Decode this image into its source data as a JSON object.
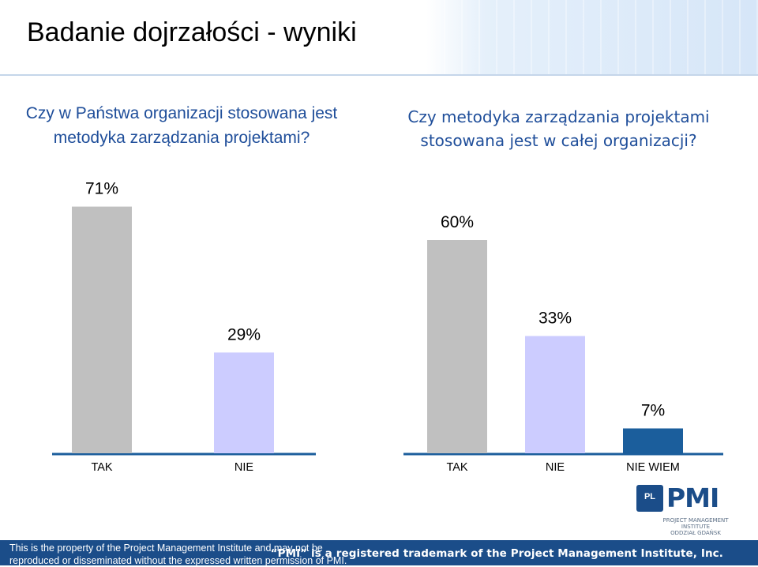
{
  "slide": {
    "title": "Badanie dojrzałości - wyniki"
  },
  "chart_data": [
    {
      "type": "bar",
      "title": "Czy w Państwa organizacji stosowana jest metodyka zarządzania projektami?",
      "categories": [
        "TAK",
        "NIE"
      ],
      "values": [
        71,
        29
      ],
      "value_labels": [
        "71%",
        "29%"
      ],
      "colors": [
        "#c0c0c0",
        "#ccccff"
      ],
      "ylim": [
        0,
        100
      ],
      "grid": false,
      "legend": "none"
    },
    {
      "type": "bar",
      "title": "Czy metodyka zarządzania projektami stosowana jest w całej organizacji?",
      "categories": [
        "TAK",
        "NIE",
        "NIE WIEM"
      ],
      "values": [
        60,
        33,
        7
      ],
      "value_labels": [
        "60%",
        "33%",
        "7%"
      ],
      "colors": [
        "#c0c0c0",
        "#ccccff",
        "#1b5e9c"
      ],
      "ylim": [
        0,
        100
      ],
      "grid": false,
      "legend": "none"
    }
  ],
  "footer": {
    "notice_line1": "This is the property of the Project Management Institute and may not be",
    "notice_line2": "reproduced or disseminated without the expressed written permission of PMI.",
    "trademark": "“PMI” is a registered trademark of the Project Management Institute, Inc."
  },
  "logo": {
    "badge": "PL",
    "wordmark": "PMI",
    "subtitle_line1": "PROJECT MANAGEMENT INSTITUTE",
    "subtitle_line2": "ODDZIAŁ GDAŃSK",
    "colors": {
      "primary": "#1b4d89"
    }
  }
}
